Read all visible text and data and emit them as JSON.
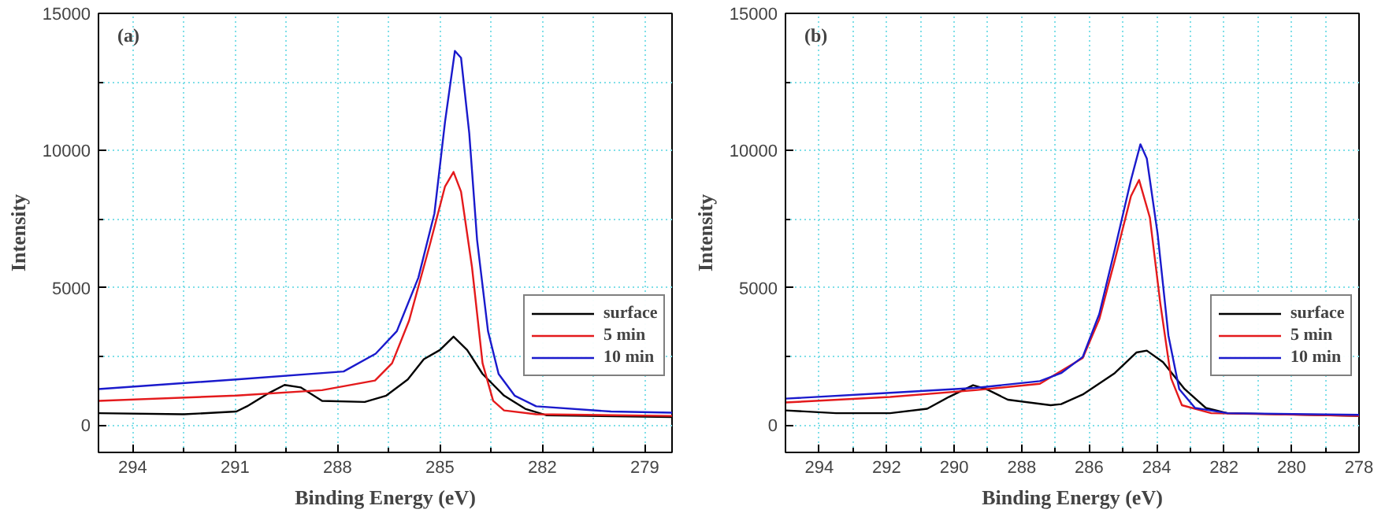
{
  "chart_data": [
    {
      "type": "line",
      "annotations": [
        "(a)"
      ],
      "xlabel": "Binding Energy (eV)",
      "ylabel": "Intensity",
      "xlim": [
        295,
        278.2
      ],
      "xticks": [
        294,
        291,
        288,
        285,
        282,
        279
      ],
      "ylim": [
        -1000,
        15000
      ],
      "yticks": [
        0,
        5000,
        10000,
        15000
      ],
      "grid": true,
      "legend": "bottom right",
      "line_style": "solid",
      "series": [
        {
          "name": "surface",
          "color": "#000000",
          "x": [
            295.0,
            292.5,
            290.96,
            290.65,
            290.0,
            289.55,
            289.08,
            288.45,
            287.2,
            286.57,
            285.94,
            285.47,
            285.0,
            284.6,
            284.2,
            283.75,
            283.12,
            282.5,
            281.87,
            278.2
          ],
          "values": [
            430,
            390,
            490,
            680,
            1170,
            1460,
            1370,
            880,
            840,
            1070,
            1660,
            2400,
            2730,
            3220,
            2730,
            1860,
            1070,
            590,
            350,
            290
          ]
        },
        {
          "name": "5 min",
          "color": "#e41a1c",
          "x": [
            295.0,
            290.96,
            288.45,
            286.9,
            286.4,
            285.9,
            285.3,
            284.85,
            284.6,
            284.38,
            284.06,
            283.75,
            283.44,
            283.12,
            282.18,
            278.2
          ],
          "values": [
            880,
            1070,
            1270,
            1620,
            2250,
            3810,
            6540,
            8690,
            9220,
            8500,
            5760,
            2250,
            880,
            530,
            390,
            330
          ]
        },
        {
          "name": "10 min",
          "color": "#1a1acc",
          "x": [
            295.0,
            290.96,
            287.82,
            286.88,
            286.26,
            285.63,
            285.16,
            284.85,
            284.56,
            284.38,
            284.14,
            283.91,
            283.59,
            283.28,
            282.81,
            282.18,
            279.99,
            278.2
          ],
          "values": [
            1310,
            1660,
            1950,
            2600,
            3420,
            5370,
            7710,
            11040,
            13630,
            13380,
            10640,
            6740,
            3420,
            1860,
            1070,
            680,
            490,
            450
          ]
        }
      ]
    },
    {
      "type": "line",
      "annotations": [
        "(b)"
      ],
      "xlabel": "Binding Energy (eV)",
      "ylabel": "Intensity",
      "xlim": [
        295,
        278
      ],
      "xticks": [
        294,
        292,
        290,
        288,
        286,
        284,
        282,
        280,
        278
      ],
      "ylim": [
        -1000,
        15000
      ],
      "yticks": [
        0,
        5000,
        10000,
        15000
      ],
      "grid": true,
      "legend": "bottom right",
      "line_style": "solid",
      "series": [
        {
          "name": "surface",
          "color": "#000000",
          "x": [
            295.0,
            293.5,
            291.9,
            290.8,
            290.16,
            289.44,
            289.05,
            288.41,
            287.14,
            286.83,
            286.19,
            285.24,
            284.6,
            284.29,
            283.81,
            283.17,
            282.54,
            281.9,
            278.0
          ],
          "values": [
            530,
            430,
            430,
            590,
            1020,
            1450,
            1310,
            920,
            720,
            760,
            1110,
            1890,
            2640,
            2710,
            2290,
            1310,
            620,
            430,
            330
          ]
        },
        {
          "name": "5 min",
          "color": "#e41a1c",
          "x": [
            295.0,
            291.9,
            289.37,
            287.46,
            286.19,
            285.7,
            285.24,
            284.76,
            284.52,
            284.2,
            283.89,
            283.57,
            283.25,
            282.38,
            278.0
          ],
          "values": [
            820,
            1020,
            1270,
            1500,
            2440,
            3850,
            6000,
            8340,
            8930,
            7560,
            4430,
            1700,
            720,
            430,
            330
          ]
        },
        {
          "name": "10 min",
          "color": "#1a1acc",
          "x": [
            295.0,
            291.9,
            289.37,
            287.46,
            286.83,
            286.19,
            285.7,
            285.24,
            284.76,
            284.48,
            284.29,
            283.97,
            283.65,
            283.33,
            282.86,
            281.9,
            278.0
          ],
          "values": [
            960,
            1170,
            1350,
            1600,
            1890,
            2480,
            4040,
            6390,
            8930,
            10230,
            9710,
            6970,
            3260,
            1310,
            620,
            430,
            370
          ]
        }
      ]
    }
  ]
}
